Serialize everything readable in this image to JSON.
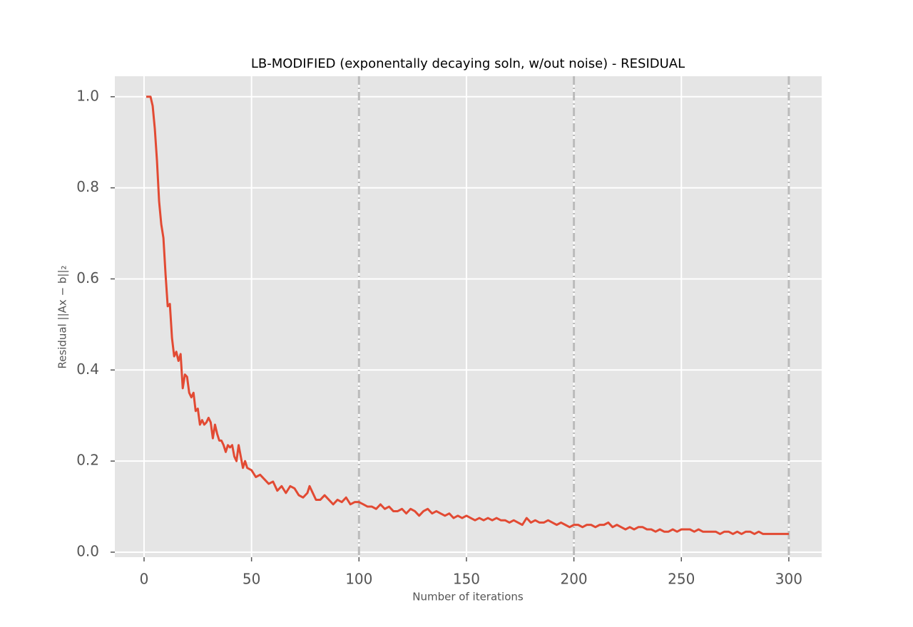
{
  "chart_data": {
    "type": "line",
    "title": "LB-MODIFIED (exponentally decaying soln, w/out noise) - RESIDUAL",
    "xlabel": "Number of iterations",
    "ylabel": "Residual ||Ax − b||₂",
    "xlim": [
      -13.6,
      315.3
    ],
    "ylim": [
      -0.011,
      1.045
    ],
    "xticks": [
      0,
      50,
      100,
      150,
      200,
      250,
      300
    ],
    "yticks": [
      {
        "value": 0,
        "label": "0.0"
      },
      0.2,
      0.4,
      0.6,
      0.8,
      {
        "value": 1,
        "label": "1.0"
      }
    ],
    "grid": true,
    "vlines": [
      100,
      200,
      300
    ],
    "vline_color": "#bbbbbb",
    "background": "#e5e5e5",
    "series": [
      {
        "color": "#e24a33",
        "x": [
          1,
          2,
          3,
          4,
          5,
          6,
          7,
          8,
          9,
          10,
          11,
          12,
          13,
          14,
          15,
          16,
          17,
          18,
          19,
          20,
          21,
          22,
          23,
          24,
          25,
          26,
          27,
          28,
          29,
          30,
          31,
          32,
          33,
          34,
          35,
          36,
          37,
          38,
          39,
          40,
          41,
          42,
          43,
          44,
          45,
          46,
          47,
          48,
          50,
          52,
          54,
          56,
          58,
          60,
          62,
          64,
          66,
          68,
          70,
          72,
          74,
          76,
          77,
          78,
          80,
          82,
          84,
          86,
          88,
          90,
          92,
          94,
          96,
          98,
          100,
          102,
          104,
          106,
          108,
          110,
          112,
          114,
          116,
          118,
          120,
          122,
          124,
          126,
          128,
          130,
          132,
          134,
          136,
          138,
          140,
          142,
          144,
          146,
          148,
          150,
          152,
          154,
          156,
          158,
          160,
          162,
          164,
          166,
          168,
          170,
          172,
          174,
          176,
          178,
          180,
          182,
          184,
          186,
          188,
          190,
          192,
          194,
          196,
          198,
          200,
          202,
          204,
          206,
          208,
          210,
          212,
          214,
          216,
          218,
          220,
          222,
          224,
          226,
          228,
          230,
          232,
          234,
          236,
          238,
          240,
          242,
          244,
          246,
          248,
          250,
          252,
          254,
          256,
          258,
          260,
          262,
          264,
          266,
          268,
          270,
          272,
          274,
          276,
          278,
          280,
          282,
          284,
          286,
          288,
          290,
          292,
          294,
          296,
          298,
          300
        ],
        "values": [
          1.0,
          1.0,
          1.0,
          0.98,
          0.93,
          0.86,
          0.77,
          0.72,
          0.69,
          0.61,
          0.54,
          0.545,
          0.47,
          0.43,
          0.44,
          0.42,
          0.435,
          0.36,
          0.39,
          0.385,
          0.35,
          0.34,
          0.35,
          0.31,
          0.315,
          0.28,
          0.29,
          0.28,
          0.285,
          0.295,
          0.285,
          0.25,
          0.28,
          0.26,
          0.245,
          0.245,
          0.235,
          0.22,
          0.235,
          0.23,
          0.235,
          0.21,
          0.2,
          0.235,
          0.21,
          0.185,
          0.2,
          0.185,
          0.18,
          0.165,
          0.17,
          0.16,
          0.15,
          0.155,
          0.135,
          0.145,
          0.13,
          0.145,
          0.14,
          0.125,
          0.12,
          0.13,
          0.145,
          0.135,
          0.115,
          0.115,
          0.125,
          0.115,
          0.105,
          0.115,
          0.11,
          0.12,
          0.105,
          0.11,
          0.11,
          0.105,
          0.1,
          0.1,
          0.095,
          0.105,
          0.095,
          0.1,
          0.09,
          0.09,
          0.095,
          0.085,
          0.095,
          0.09,
          0.08,
          0.09,
          0.095,
          0.085,
          0.09,
          0.085,
          0.08,
          0.085,
          0.075,
          0.08,
          0.075,
          0.08,
          0.075,
          0.07,
          0.075,
          0.07,
          0.075,
          0.07,
          0.075,
          0.07,
          0.07,
          0.065,
          0.07,
          0.065,
          0.06,
          0.075,
          0.065,
          0.07,
          0.065,
          0.065,
          0.07,
          0.065,
          0.06,
          0.065,
          0.06,
          0.055,
          0.06,
          0.06,
          0.055,
          0.06,
          0.06,
          0.055,
          0.06,
          0.06,
          0.065,
          0.055,
          0.06,
          0.055,
          0.05,
          0.055,
          0.05,
          0.055,
          0.055,
          0.05,
          0.05,
          0.045,
          0.05,
          0.045,
          0.045,
          0.05,
          0.045,
          0.05,
          0.05,
          0.05,
          0.045,
          0.05,
          0.045,
          0.045,
          0.045,
          0.045,
          0.04,
          0.045,
          0.045,
          0.04,
          0.045,
          0.04,
          0.045,
          0.045,
          0.04,
          0.045,
          0.04,
          0.04,
          0.04,
          0.04,
          0.04,
          0.04,
          0.04
        ]
      }
    ]
  }
}
